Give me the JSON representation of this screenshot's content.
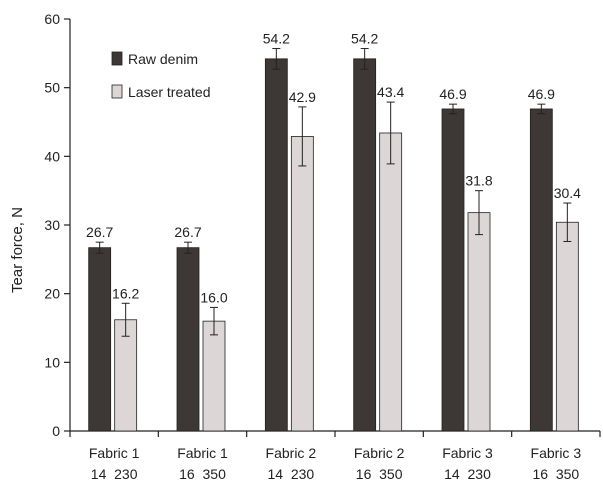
{
  "chart_data": {
    "type": "bar",
    "ylabel": "Tear force, N",
    "ylim": [
      0,
      60
    ],
    "yticks": [
      0,
      10,
      20,
      30,
      40,
      50,
      60
    ],
    "grid": false,
    "legend_position": "top-left",
    "categories": [
      {
        "line1": "Fabric 1",
        "line2": "14  230"
      },
      {
        "line1": "Fabric 1",
        "line2": "16  350"
      },
      {
        "line1": "Fabric 2",
        "line2": "14  230"
      },
      {
        "line1": "Fabric 2",
        "line2": "16  350"
      },
      {
        "line1": "Fabric 3",
        "line2": "14  230"
      },
      {
        "line1": "Fabric 3",
        "line2": "16  350"
      }
    ],
    "series": [
      {
        "name": "Raw denim",
        "color": "#3d3735",
        "values": [
          26.7,
          26.7,
          54.2,
          54.2,
          46.9,
          46.9
        ],
        "labels": [
          "26.7",
          "26.7",
          "54.2",
          "54.2",
          "46.9",
          "46.9"
        ],
        "errors": [
          0.8,
          0.8,
          1.5,
          1.5,
          0.7,
          0.7
        ]
      },
      {
        "name": "Laser treated",
        "color": "#dcd6d6",
        "values": [
          16.2,
          16.0,
          42.9,
          43.4,
          31.8,
          30.4
        ],
        "labels": [
          "16.2",
          "16.0",
          "42.9",
          "43.4",
          "31.8",
          "30.4"
        ],
        "errors": [
          2.4,
          2.0,
          4.3,
          4.5,
          3.2,
          2.8
        ]
      }
    ]
  }
}
